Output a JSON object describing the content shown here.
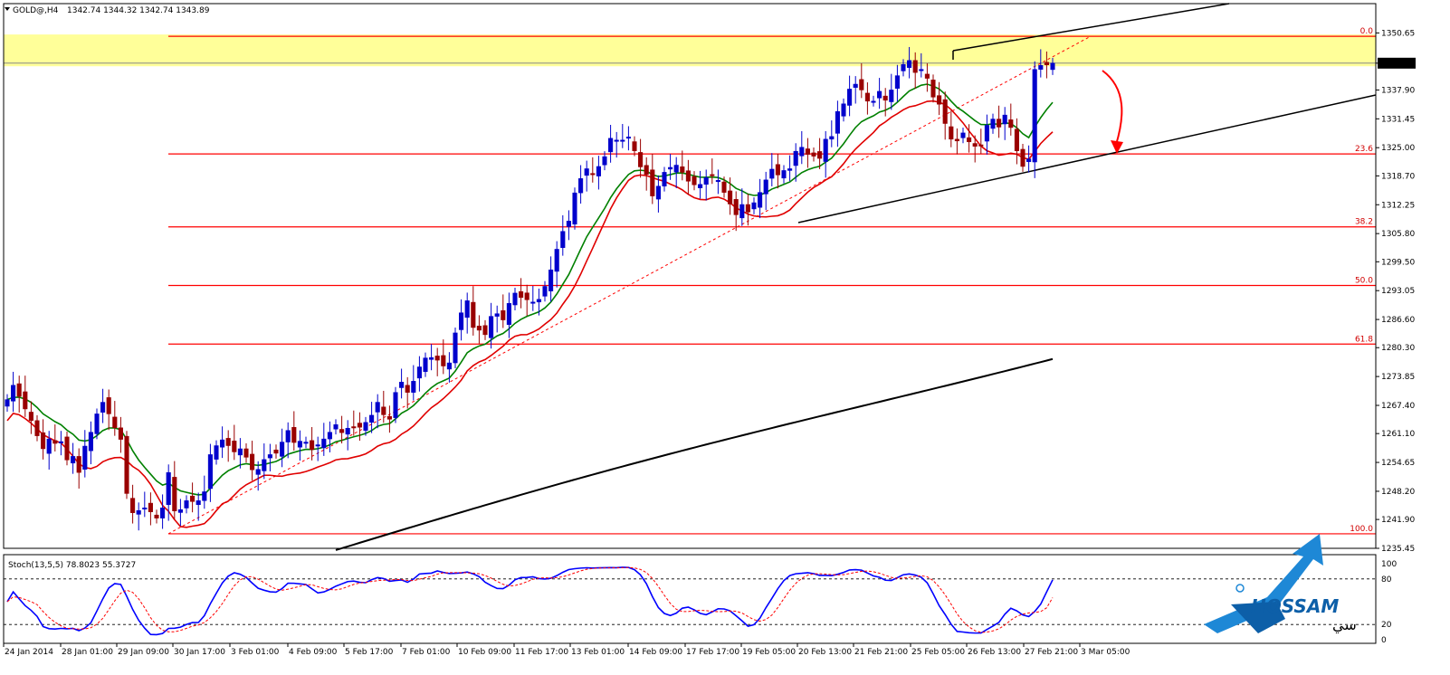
{
  "header": {
    "symbol": "GOLD@,H4",
    "ohlc": "1342.74 1344.32 1342.74 1343.89"
  },
  "stoch_label": "Stoch(13,5,5) 78.8023 55.3727",
  "current_price": "1343.89",
  "logo": {
    "text": "HOSSAM",
    "script": "سي"
  },
  "colors": {
    "bull": "#0000cc",
    "bear": "#990000",
    "ma_fast": "#008000",
    "ma_slow": "#e00000",
    "ma_long": "#000000",
    "fib": "#ff0000",
    "zone": "#ffff99",
    "stoch_main": "#0000ff",
    "stoch_signal": "#ff0000"
  },
  "chart_data": {
    "type": "candlestick",
    "ylim": [
      1235.45,
      1357.2
    ],
    "y_ticks": [
      "1350.65",
      "1343.89",
      "1337.90",
      "1331.45",
      "1325.00",
      "1318.70",
      "1312.25",
      "1305.80",
      "1299.50",
      "1293.05",
      "1286.60",
      "1280.30",
      "1273.85",
      "1267.40",
      "1261.10",
      "1254.65",
      "1248.20",
      "1241.90",
      "1235.45"
    ],
    "x_ticks": [
      "24 Jan 2014",
      "28 Jan 01:00",
      "29 Jan 09:00",
      "30 Jan 17:00",
      "3 Feb 01:00",
      "4 Feb 09:00",
      "5 Feb 17:00",
      "7 Feb 01:00",
      "10 Feb 09:00",
      "11 Feb 17:00",
      "13 Feb 01:00",
      "14 Feb 09:00",
      "17 Feb 17:00",
      "19 Feb 05:00",
      "20 Feb 13:00",
      "21 Feb 21:00",
      "25 Feb 05:00",
      "26 Feb 13:00",
      "27 Feb 21:00",
      "3 Mar 05:00"
    ],
    "fib_levels": [
      {
        "label": "0.0",
        "price": 1349.9
      },
      {
        "label": "23.6",
        "price": 1323.6
      },
      {
        "label": "38.2",
        "price": 1307.3
      },
      {
        "label": "50.0",
        "price": 1294.2
      },
      {
        "label": "61.8",
        "price": 1281.1
      },
      {
        "label": "100.0",
        "price": 1238.7
      }
    ],
    "resistance_zone": [
      1343.2,
      1350.3
    ],
    "closes": [
      1268.7,
      1271.9,
      1269.4,
      1266.6,
      1264.0,
      1260.6,
      1257.7,
      1259.9,
      1258.9,
      1259.3,
      1255.2,
      1256.0,
      1252.4,
      1258.3,
      1261.4,
      1265.5,
      1268.1,
      1265.5,
      1262.4,
      1259.8,
      1247.7,
      1243.4,
      1243.9,
      1244.5,
      1243.6,
      1242.2,
      1244.5,
      1252.4,
      1243.8,
      1244.1,
      1246.1,
      1245.9,
      1246.1,
      1248.1,
      1256.4,
      1258.4,
      1259.7,
      1258.4,
      1257.0,
      1257.7,
      1255.8,
      1253.0,
      1253.1,
      1255.3,
      1256.4,
      1256.7,
      1259.2,
      1261.8,
      1259.1,
      1259.4,
      1259.2,
      1257.5,
      1258.6,
      1259.9,
      1261.4,
      1263.1,
      1261.3,
      1262.3,
      1262.4,
      1262.5,
      1263.6,
      1265.2,
      1268.1,
      1265.3,
      1264.3,
      1270.3,
      1272.6,
      1270.3,
      1272.8,
      1276.0,
      1278.0,
      1278.1,
      1277.5,
      1276.2,
      1276.9,
      1283.6,
      1288.1,
      1290.8,
      1284.8,
      1284.2,
      1283.2,
      1287.3,
      1287.9,
      1286.5,
      1290.2,
      1292.5,
      1291.5,
      1291.0,
      1290.5,
      1291.1,
      1294.0,
      1297.7,
      1302.3,
      1306.3,
      1308.6,
      1314.9,
      1318.1,
      1320.3,
      1319.0,
      1320.8,
      1323.0,
      1327.1,
      1326.7,
      1326.7,
      1327.4,
      1324.3,
      1320.7,
      1319.0,
      1314.2,
      1316.4,
      1319.5,
      1320.6,
      1321.1,
      1319.5,
      1317.5,
      1316.7,
      1316.8,
      1318.3,
      1318.7,
      1317.7,
      1315.0,
      1312.4,
      1310.0,
      1312.3,
      1310.6,
      1312.7,
      1315.0,
      1317.8,
      1320.2,
      1318.9,
      1319.9,
      1320.3,
      1324.2,
      1325.1,
      1323.5,
      1323.1,
      1322.6,
      1326.9,
      1327.5,
      1333.1,
      1334.8,
      1338.1,
      1339.2,
      1337.9,
      1335.4,
      1335.4,
      1337.6,
      1335.6,
      1337.9,
      1341.1,
      1343.6,
      1344.5,
      1341.8,
      1342.5,
      1340.5,
      1336.3,
      1334.7,
      1330.4,
      1326.9,
      1326.5,
      1328.3,
      1326.3,
      1325.3,
      1325.4,
      1330.0,
      1331.4,
      1329.6,
      1332.3,
      1329.5,
      1324.3,
      1320.8,
      1322.5,
      1342.5,
      1343.4,
      1343.5,
      1343.9
    ],
    "ma_fast_label": "green",
    "ma_slow_label": "red",
    "stoch": {
      "k": 78.8023,
      "d": 55.3727,
      "levels": [
        80,
        20
      ],
      "scale": [
        "100",
        "80",
        "20",
        "0"
      ]
    }
  }
}
